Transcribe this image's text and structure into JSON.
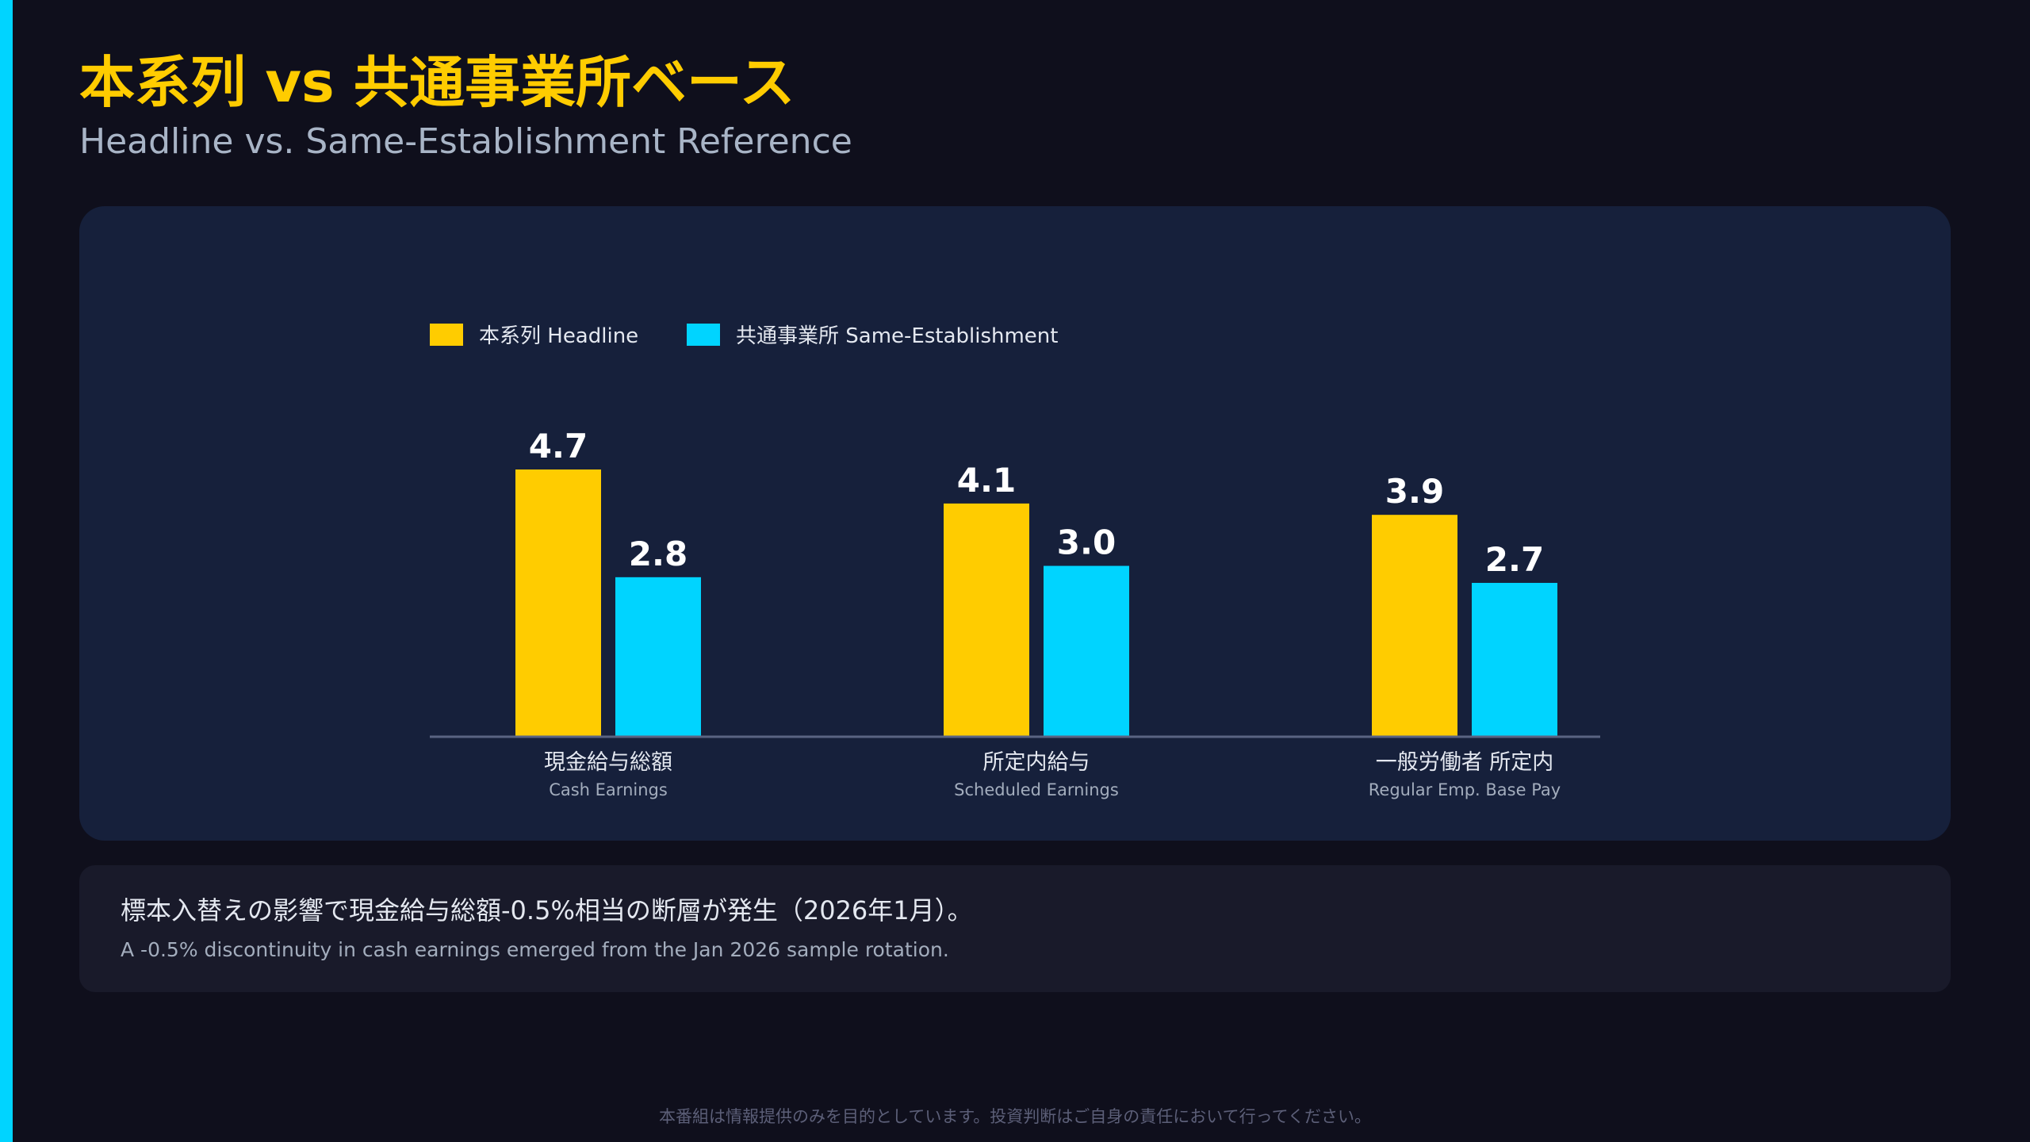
{
  "header": {
    "title": "本系列 vs 共通事業所ベース",
    "subtitle": "Headline vs. Same-Establishment Reference"
  },
  "chart_data": {
    "type": "bar",
    "categories": [
      "現金給与総額",
      "所定内給与",
      "一般労働者 所定内"
    ],
    "category_sublabels": [
      "Cash Earnings",
      "Scheduled Earnings",
      "Regular Emp. Base Pay"
    ],
    "series": [
      {
        "name": "本系列 Headline",
        "values": [
          4.7,
          4.1,
          3.9
        ],
        "color": "#ffcc00"
      },
      {
        "name": "共通事業所 Same-Establishment",
        "values": [
          2.8,
          3.0,
          2.7
        ],
        "color": "#00d4ff"
      }
    ],
    "ylim": [
      0,
      4.7
    ],
    "grid": false,
    "legend": "top-left",
    "data_labels": true
  },
  "note": {
    "ja": "標本入替えの影響で現金給与総額-0.5%相当の断層が発生（2026年1月）。",
    "en": "A -0.5% discontinuity in cash earnings emerged from the Jan 2026 sample rotation."
  },
  "footer": "本番組は情報提供のみを目的としています。投資判断はご自身の責任において行ってください。"
}
